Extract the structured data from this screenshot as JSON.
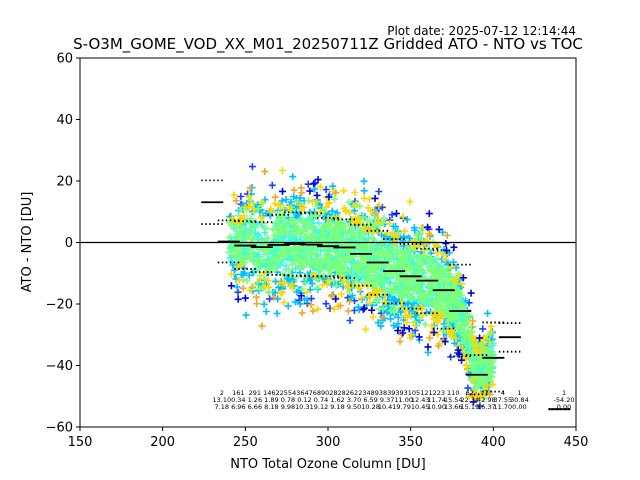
{
  "chart_data": {
    "type": "scatter",
    "title": "S-O3M_GOME_VOD_XX_M01_20250711Z Gridded ATO - NTO vs TOC",
    "plot_date": "Plot date: 2025-07-12 12:14:44",
    "xlabel": "NTO Total Ozone Column [DU]",
    "ylabel": "ATO - NTO [DU]",
    "xlim": [
      150,
      450
    ],
    "ylim": [
      -60,
      60
    ],
    "xticks": [
      "150",
      "200",
      "250",
      "300",
      "350",
      "400",
      "450"
    ],
    "yticks": [
      "60",
      "40",
      "20",
      "0",
      "−20",
      "−40",
      "−60"
    ],
    "grid": false,
    "zero_line": 0,
    "scatter_cloud": {
      "x_range": [
        232,
        412
      ],
      "y_center": -9,
      "colors": [
        "#2040ff",
        "#00bfff",
        "#3dfcd8",
        "#7dff7a",
        "#ffd700",
        "#f5a623",
        "#0000ee"
      ]
    },
    "bins": [
      {
        "center": 230,
        "mean": 13.1,
        "std_hi": 20.2,
        "std_lo": 6.0
      },
      {
        "center": 240,
        "mean": 0.3,
        "std_hi": 7.2,
        "std_lo": -6.5
      },
      {
        "center": 250,
        "mean": -1.0,
        "std_hi": 6.9,
        "std_lo": -8.6
      },
      {
        "center": 260,
        "mean": -1.5,
        "std_hi": 6.6,
        "std_lo": -9.6
      },
      {
        "center": 270,
        "mean": -0.8,
        "std_hi": 9.0,
        "std_lo": -10.5
      },
      {
        "center": 280,
        "mean": -0.5,
        "std_hi": 9.8,
        "std_lo": -10.8
      },
      {
        "center": 290,
        "mean": -0.7,
        "std_hi": 9.5,
        "std_lo": -11.0
      },
      {
        "center": 300,
        "mean": -1.2,
        "std_hi": 8.0,
        "std_lo": -11.0
      },
      {
        "center": 310,
        "mean": -1.6,
        "std_hi": 7.5,
        "std_lo": -11.5
      },
      {
        "center": 320,
        "mean": -3.7,
        "std_hi": 5.8,
        "std_lo": -14.0
      },
      {
        "center": 330,
        "mean": -6.5,
        "std_hi": 3.8,
        "std_lo": -17.0
      },
      {
        "center": 340,
        "mean": -9.3,
        "std_hi": 1.1,
        "std_lo": -19.8
      },
      {
        "center": 350,
        "mean": -11.0,
        "std_hi": -0.5,
        "std_lo": -21.5
      },
      {
        "center": 360,
        "mean": -12.4,
        "std_hi": -2.0,
        "std_lo": -23.0
      },
      {
        "center": 370,
        "mean": -15.5,
        "std_hi": -2.6,
        "std_lo": -28.0
      },
      {
        "center": 380,
        "mean": -22.3,
        "std_hi": -7.2,
        "std_lo": -37.0
      },
      {
        "center": 390,
        "mean": -43.0,
        "std_hi": -36.6,
        "std_lo": -49.4
      },
      {
        "center": 400,
        "mean": -37.5,
        "std_hi": -26.0,
        "std_lo": -48.5
      },
      {
        "center": 410,
        "mean": -30.8,
        "std_hi": -26.2,
        "std_lo": -35.5
      },
      {
        "center": 440,
        "mean": -54.2,
        "std_hi": -54.2,
        "std_lo": -54.2
      }
    ],
    "stats_rows": [
      {
        "x": 240,
        "lines": [
          "2",
          "13.10",
          "7.18"
        ]
      },
      {
        "x": 250,
        "lines": [
          "161",
          "0.34",
          "6.96"
        ]
      },
      {
        "x": 260,
        "lines": [
          "291",
          "1.26",
          "6.66"
        ]
      },
      {
        "x": 270,
        "lines": [
          "1462",
          "1.89",
          "8.18"
        ]
      },
      {
        "x": 280,
        "lines": [
          "2554",
          "0.78",
          "9.98"
        ]
      },
      {
        "x": 290,
        "lines": [
          "3647",
          "0.12",
          "10.31"
        ]
      },
      {
        "x": 300,
        "lines": [
          "6890",
          "0.74",
          "9.12"
        ]
      },
      {
        "x": 310,
        "lines": [
          "2828",
          "1.62",
          "9.18"
        ]
      },
      {
        "x": 320,
        "lines": [
          "2622",
          "3.70",
          "9.50"
        ]
      },
      {
        "x": 330,
        "lines": [
          "3489",
          "6.59",
          "10.28"
        ]
      },
      {
        "x": 340,
        "lines": [
          "3839",
          "9.37",
          "10.41"
        ]
      },
      {
        "x": 350,
        "lines": [
          "3931",
          "11.00",
          "9.79"
        ]
      },
      {
        "x": 360,
        "lines": [
          "0512",
          "12.43",
          "10.45"
        ]
      },
      {
        "x": 370,
        "lines": [
          "1223",
          "11.74",
          "10.90"
        ]
      },
      {
        "x": 380,
        "lines": [
          "110",
          "15.54",
          "13.66"
        ]
      },
      {
        "x": 390,
        "lines": [
          "62",
          "22.34",
          "15.19"
        ]
      },
      {
        "x": 400,
        "lines": [
          "7",
          "42.98",
          "16.37"
        ]
      },
      {
        "x": 410,
        "lines": [
          "4",
          "37.55",
          "11.70"
        ]
      },
      {
        "x": 420,
        "lines": [
          "1",
          "30.84",
          "0.00"
        ]
      },
      {
        "x": 447,
        "lines": [
          "1",
          "-54.20",
          "0.00"
        ]
      }
    ]
  }
}
